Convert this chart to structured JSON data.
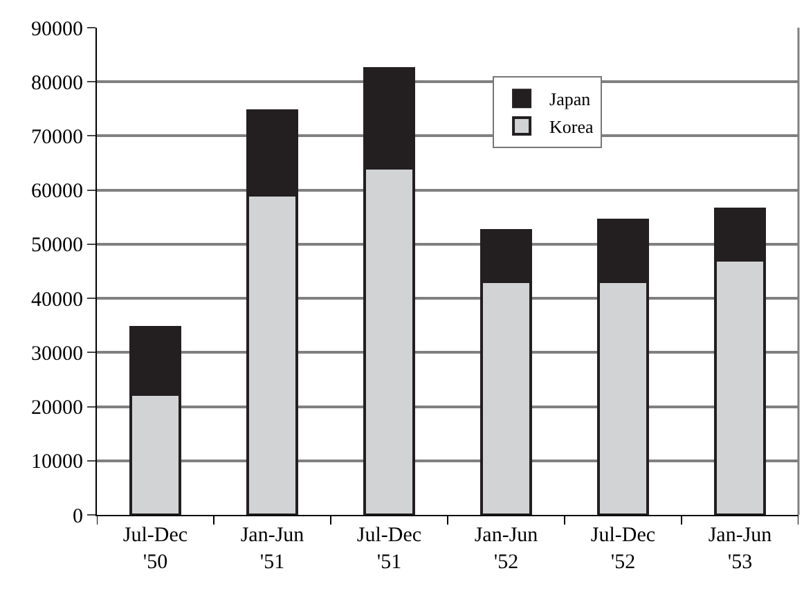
{
  "chart_data": {
    "type": "bar",
    "stacked": true,
    "categories": [
      "Jul-Dec '50",
      "Jan-Jun '51",
      "Jul-Dec '51",
      "Jan-Jun '52",
      "Jul-Dec '52",
      "Jan-Jun '53"
    ],
    "series": [
      {
        "name": "Korea",
        "color": "#d1d3d4",
        "values": [
          22200,
          59000,
          64100,
          43100,
          43100,
          47000
        ]
      },
      {
        "name": "Japan",
        "color": "#231f20",
        "values": [
          12400,
          15600,
          18400,
          9400,
          11400,
          9500
        ]
      }
    ],
    "ylim": [
      0,
      90000
    ],
    "yticks": [
      0,
      10000,
      20000,
      30000,
      40000,
      50000,
      60000,
      70000,
      80000,
      90000
    ],
    "grid": "y",
    "legend": "top right"
  }
}
